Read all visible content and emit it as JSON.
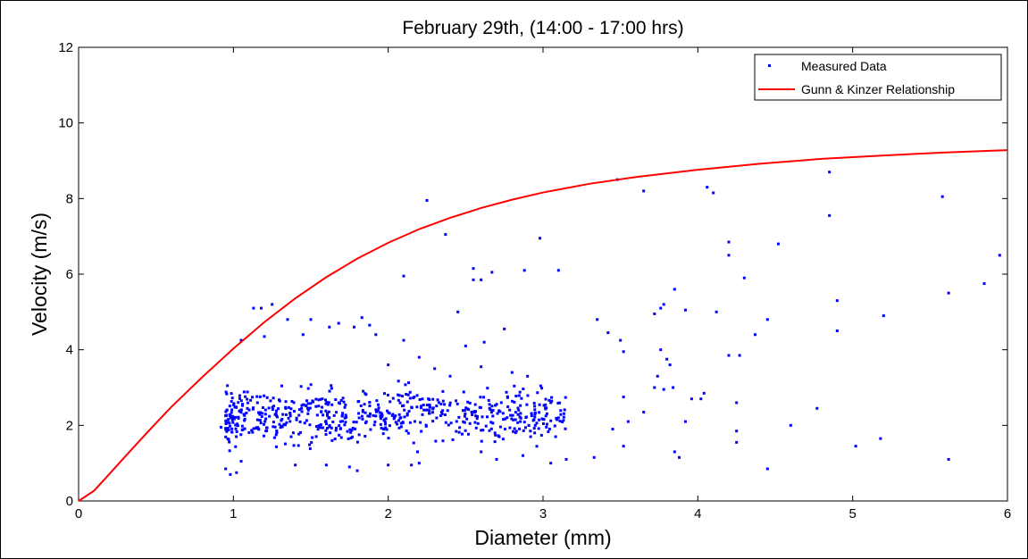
{
  "chart_data": {
    "type": "scatter",
    "title": "February 29th, (14:00 - 17:00 hrs)",
    "xlabel": "Diameter (mm)",
    "ylabel": "Velocity (m/s)",
    "xlim": [
      0,
      6
    ],
    "ylim": [
      0,
      12
    ],
    "xticks": [
      0,
      1,
      2,
      3,
      4,
      5,
      6
    ],
    "yticks": [
      0,
      2,
      4,
      6,
      8,
      10,
      12
    ],
    "grid": false,
    "legend_position": "top-right",
    "colors": {
      "measured": "#0000ff",
      "model": "#ff0000"
    },
    "series": [
      {
        "name": "Measured Data",
        "kind": "scatter",
        "points": [
          [
            1.13,
            5.1
          ],
          [
            1.18,
            5.1
          ],
          [
            1.25,
            5.2
          ],
          [
            1.2,
            4.35
          ],
          [
            1.35,
            4.8
          ],
          [
            1.05,
            4.25
          ],
          [
            1.5,
            4.8
          ],
          [
            1.62,
            4.6
          ],
          [
            1.68,
            4.7
          ],
          [
            1.78,
            4.6
          ],
          [
            1.83,
            4.85
          ],
          [
            1.88,
            4.65
          ],
          [
            1.92,
            4.4
          ],
          [
            1.45,
            4.4
          ],
          [
            2.1,
            4.25
          ],
          [
            2.1,
            5.95
          ],
          [
            2.25,
            7.95
          ],
          [
            2.37,
            7.05
          ],
          [
            2.45,
            5.0
          ],
          [
            2.55,
            5.85
          ],
          [
            2.55,
            6.15
          ],
          [
            2.6,
            5.85
          ],
          [
            2.67,
            6.05
          ],
          [
            2.88,
            6.1
          ],
          [
            2.98,
            6.95
          ],
          [
            3.1,
            6.1
          ],
          [
            2.5,
            4.1
          ],
          [
            2.62,
            4.2
          ],
          [
            2.75,
            4.55
          ],
          [
            2.6,
            3.55
          ],
          [
            3.35,
            4.8
          ],
          [
            3.42,
            4.45
          ],
          [
            3.48,
            8.5
          ],
          [
            3.5,
            4.25
          ],
          [
            3.52,
            3.95
          ],
          [
            3.52,
            2.75
          ],
          [
            3.55,
            2.1
          ],
          [
            3.45,
            1.9
          ],
          [
            3.52,
            1.45
          ],
          [
            3.33,
            1.15
          ],
          [
            3.65,
            8.2
          ],
          [
            3.65,
            2.35
          ],
          [
            3.72,
            4.95
          ],
          [
            3.76,
            5.1
          ],
          [
            3.78,
            5.2
          ],
          [
            3.85,
            5.6
          ],
          [
            3.92,
            5.05
          ],
          [
            3.74,
            3.3
          ],
          [
            3.72,
            3.0
          ],
          [
            3.78,
            2.95
          ],
          [
            3.84,
            3.0
          ],
          [
            3.76,
            4.0
          ],
          [
            3.8,
            3.75
          ],
          [
            3.82,
            3.6
          ],
          [
            3.85,
            1.3
          ],
          [
            3.88,
            1.15
          ],
          [
            3.92,
            2.1
          ],
          [
            3.96,
            2.7
          ],
          [
            4.02,
            2.7
          ],
          [
            4.04,
            2.85
          ],
          [
            4.06,
            8.3
          ],
          [
            4.1,
            8.15
          ],
          [
            4.12,
            5.0
          ],
          [
            4.2,
            6.85
          ],
          [
            4.2,
            6.5
          ],
          [
            4.2,
            3.85
          ],
          [
            4.27,
            3.85
          ],
          [
            4.25,
            2.6
          ],
          [
            4.25,
            1.85
          ],
          [
            4.25,
            1.55
          ],
          [
            4.3,
            5.9
          ],
          [
            4.37,
            4.4
          ],
          [
            4.45,
            4.8
          ],
          [
            4.45,
            0.85
          ],
          [
            4.52,
            6.8
          ],
          [
            4.6,
            2.0
          ],
          [
            4.77,
            2.45
          ],
          [
            4.85,
            8.7
          ],
          [
            4.85,
            7.55
          ],
          [
            4.9,
            5.3
          ],
          [
            4.9,
            4.5
          ],
          [
            5.02,
            1.45
          ],
          [
            5.2,
            4.9
          ],
          [
            5.18,
            1.65
          ],
          [
            5.58,
            8.05
          ],
          [
            5.62,
            5.5
          ],
          [
            5.62,
            1.1
          ],
          [
            5.85,
            5.75
          ],
          [
            5.95,
            6.5
          ],
          [
            2.0,
            3.6
          ],
          [
            2.2,
            3.8
          ],
          [
            2.3,
            3.5
          ],
          [
            2.4,
            3.3
          ],
          [
            2.8,
            3.4
          ],
          [
            2.9,
            3.3
          ],
          [
            3.05,
            2.6
          ],
          [
            3.1,
            2.2
          ],
          [
            3.15,
            1.1
          ],
          [
            3.05,
            1.0
          ],
          [
            2.95,
            2.0
          ],
          [
            2.87,
            1.2
          ],
          [
            2.92,
            1.7
          ],
          [
            2.7,
            1.1
          ],
          [
            2.6,
            1.3
          ],
          [
            2.2,
            1.0
          ],
          [
            2.15,
            0.95
          ],
          [
            2.0,
            0.95
          ],
          [
            0.92,
            1.95
          ],
          [
            0.95,
            0.85
          ],
          [
            0.98,
            0.7
          ],
          [
            1.02,
            0.75
          ],
          [
            1.05,
            1.05
          ],
          [
            1.8,
            0.8
          ],
          [
            1.75,
            0.9
          ],
          [
            1.6,
            0.95
          ],
          [
            1.4,
            0.95
          ]
        ]
      },
      {
        "name": "Gunn & Kinzer Relationship",
        "kind": "line",
        "x": [
          0.0,
          0.1,
          0.2,
          0.3,
          0.4,
          0.5,
          0.6,
          0.8,
          1.0,
          1.2,
          1.4,
          1.6,
          1.8,
          2.0,
          2.2,
          2.4,
          2.6,
          2.8,
          3.0,
          3.3,
          3.6,
          4.0,
          4.4,
          4.8,
          5.2,
          5.6,
          6.0
        ],
        "y": [
          0.0,
          0.27,
          0.72,
          1.17,
          1.62,
          2.06,
          2.49,
          3.28,
          4.03,
          4.73,
          5.36,
          5.92,
          6.41,
          6.83,
          7.19,
          7.49,
          7.75,
          7.97,
          8.16,
          8.39,
          8.57,
          8.76,
          8.92,
          9.05,
          9.14,
          9.22,
          9.28
        ]
      }
    ]
  }
}
